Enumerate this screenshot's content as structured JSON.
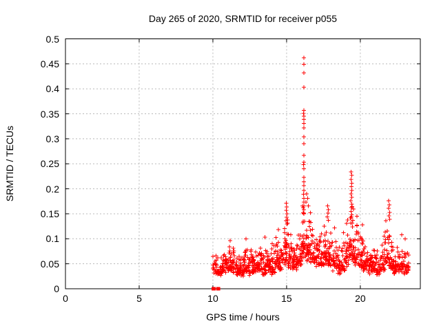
{
  "chart_data": {
    "type": "scatter",
    "title": "Day 265 of 2020, SRMTID for receiver p055",
    "xlabel": "GPS time / hours",
    "ylabel": "SRMTID / TECUs",
    "xlim": [
      0,
      24.07
    ],
    "ylim": [
      0,
      0.5
    ],
    "xtick_values": [
      0,
      5,
      10,
      15,
      20
    ],
    "xtick_labels": [
      "0",
      "5",
      "10",
      "15",
      "20"
    ],
    "ytick_values": [
      0,
      0.05,
      0.1,
      0.15,
      0.2,
      0.25,
      0.3,
      0.35,
      0.4,
      0.45,
      0.5
    ],
    "ytick_labels": [
      "0",
      "0.05",
      "0.1",
      "0.15",
      "0.2",
      "0.25",
      "0.3",
      "0.35",
      "0.4",
      "0.45",
      "0.5"
    ],
    "grid": "dotted",
    "legend": "none",
    "marker": "plus",
    "marker_color": "#ff0000",
    "grid_color": "#b8b8b8",
    "border_color": "#000000",
    "background_color": "#ffffff",
    "zero_points_x": [
      10.03,
      10.07,
      10.34,
      10.38
    ],
    "outlier_points": [
      [
        16.16,
        0.462
      ],
      [
        16.17,
        0.449
      ],
      [
        16.16,
        0.432
      ],
      [
        16.18,
        0.403
      ],
      [
        16.17,
        0.357
      ],
      [
        16.15,
        0.351
      ],
      [
        16.18,
        0.345
      ],
      [
        16.17,
        0.339
      ],
      [
        16.16,
        0.331
      ],
      [
        16.18,
        0.322
      ],
      [
        16.17,
        0.304
      ],
      [
        16.16,
        0.29
      ],
      [
        16.18,
        0.267
      ],
      [
        16.17,
        0.253
      ],
      [
        16.15,
        0.248
      ],
      [
        16.18,
        0.24
      ],
      [
        16.17,
        0.223
      ],
      [
        16.16,
        0.214
      ],
      [
        16.18,
        0.206
      ],
      [
        16.17,
        0.197
      ],
      [
        16.15,
        0.189
      ],
      [
        16.18,
        0.181
      ],
      [
        16.17,
        0.173
      ],
      [
        16.16,
        0.166
      ],
      [
        16.18,
        0.158
      ],
      [
        16.17,
        0.15
      ],
      [
        19.38,
        0.234
      ],
      [
        19.41,
        0.227
      ],
      [
        19.37,
        0.219
      ],
      [
        19.42,
        0.211
      ],
      [
        19.39,
        0.204
      ],
      [
        19.43,
        0.197
      ],
      [
        19.38,
        0.19
      ],
      [
        19.41,
        0.183
      ],
      [
        19.36,
        0.176
      ],
      [
        19.43,
        0.169
      ],
      [
        19.4,
        0.162
      ],
      [
        19.37,
        0.155
      ],
      [
        19.42,
        0.148
      ],
      [
        14.97,
        0.171
      ],
      [
        15.01,
        0.164
      ],
      [
        14.98,
        0.157
      ],
      [
        15.03,
        0.15
      ],
      [
        15.0,
        0.143
      ],
      [
        14.96,
        0.136
      ],
      [
        15.02,
        0.129
      ],
      [
        17.79,
        0.166
      ],
      [
        17.83,
        0.158
      ],
      [
        17.8,
        0.151
      ],
      [
        17.77,
        0.144
      ],
      [
        17.84,
        0.137
      ],
      [
        21.93,
        0.176
      ],
      [
        21.97,
        0.168
      ],
      [
        21.91,
        0.161
      ],
      [
        22.0,
        0.153
      ],
      [
        21.95,
        0.146
      ],
      [
        21.98,
        0.139
      ],
      [
        11.18,
        0.096
      ],
      [
        12.24,
        0.1
      ],
      [
        13.52,
        0.103
      ],
      [
        14.45,
        0.118
      ],
      [
        16.35,
        0.19
      ],
      [
        16.42,
        0.181
      ],
      [
        16.3,
        0.173
      ],
      [
        16.47,
        0.166
      ],
      [
        16.62,
        0.152
      ],
      [
        18.25,
        0.122
      ],
      [
        18.86,
        0.112
      ],
      [
        20.15,
        0.128
      ],
      [
        22.8,
        0.108
      ],
      [
        23.05,
        0.1
      ]
    ],
    "cloud_bands_format": [
      "x_start_hours",
      "x_end_hours",
      "y_min_TECUs",
      "y_max_TECUs",
      "n_points"
    ],
    "cloud_bands": [
      [
        10.0,
        10.3,
        0.025,
        0.068,
        20
      ],
      [
        10.3,
        10.6,
        0.02,
        0.075,
        24
      ],
      [
        10.6,
        10.9,
        0.025,
        0.085,
        26
      ],
      [
        10.9,
        11.2,
        0.028,
        0.092,
        28
      ],
      [
        11.2,
        11.5,
        0.025,
        0.098,
        26
      ],
      [
        11.5,
        11.8,
        0.02,
        0.082,
        26
      ],
      [
        11.8,
        12.1,
        0.016,
        0.075,
        26
      ],
      [
        12.1,
        12.4,
        0.025,
        0.095,
        28
      ],
      [
        12.4,
        12.7,
        0.02,
        0.085,
        26
      ],
      [
        12.7,
        13.0,
        0.025,
        0.088,
        26
      ],
      [
        13.0,
        13.3,
        0.028,
        0.095,
        28
      ],
      [
        13.3,
        13.6,
        0.016,
        0.09,
        26
      ],
      [
        13.6,
        13.9,
        0.025,
        0.1,
        28
      ],
      [
        13.9,
        14.2,
        0.02,
        0.098,
        26
      ],
      [
        14.2,
        14.5,
        0.028,
        0.115,
        28
      ],
      [
        14.5,
        14.8,
        0.025,
        0.108,
        26
      ],
      [
        14.8,
        15.1,
        0.032,
        0.155,
        30
      ],
      [
        15.1,
        15.4,
        0.03,
        0.138,
        28
      ],
      [
        15.4,
        15.7,
        0.028,
        0.112,
        26
      ],
      [
        15.7,
        16.0,
        0.032,
        0.128,
        28
      ],
      [
        16.0,
        16.3,
        0.04,
        0.185,
        32
      ],
      [
        16.3,
        16.6,
        0.042,
        0.172,
        30
      ],
      [
        16.6,
        16.9,
        0.04,
        0.15,
        28
      ],
      [
        16.9,
        17.2,
        0.035,
        0.128,
        26
      ],
      [
        17.2,
        17.5,
        0.03,
        0.14,
        26
      ],
      [
        17.5,
        17.8,
        0.032,
        0.158,
        28
      ],
      [
        17.8,
        18.1,
        0.028,
        0.142,
        26
      ],
      [
        18.1,
        18.4,
        0.025,
        0.118,
        24
      ],
      [
        18.4,
        18.7,
        0.02,
        0.098,
        22
      ],
      [
        18.7,
        19.0,
        0.024,
        0.112,
        24
      ],
      [
        19.0,
        19.3,
        0.03,
        0.148,
        28
      ],
      [
        19.3,
        19.6,
        0.034,
        0.205,
        30
      ],
      [
        19.6,
        19.9,
        0.03,
        0.162,
        28
      ],
      [
        19.9,
        20.2,
        0.028,
        0.125,
        28
      ],
      [
        20.2,
        20.5,
        0.025,
        0.112,
        28
      ],
      [
        20.5,
        20.8,
        0.02,
        0.108,
        26
      ],
      [
        20.8,
        21.1,
        0.02,
        0.102,
        26
      ],
      [
        21.1,
        21.4,
        0.016,
        0.092,
        24
      ],
      [
        21.4,
        21.7,
        0.024,
        0.115,
        26
      ],
      [
        21.7,
        22.0,
        0.03,
        0.148,
        28
      ],
      [
        22.0,
        22.3,
        0.025,
        0.118,
        26
      ],
      [
        22.3,
        22.6,
        0.02,
        0.098,
        24
      ],
      [
        22.6,
        22.9,
        0.024,
        0.105,
        24
      ],
      [
        22.9,
        23.2,
        0.02,
        0.092,
        22
      ],
      [
        23.2,
        23.35,
        0.03,
        0.078,
        10
      ]
    ],
    "seed": 265
  }
}
